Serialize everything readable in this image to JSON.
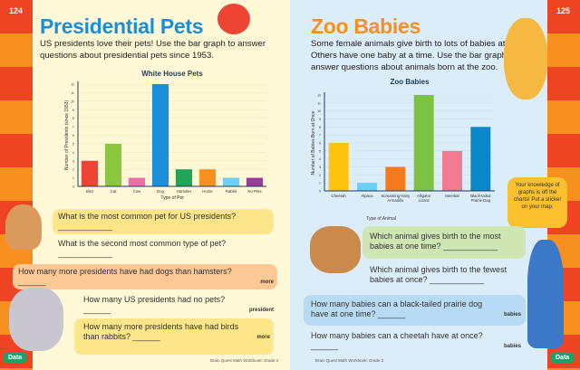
{
  "left_page": {
    "page_number": "124",
    "title": "Presidential Pets",
    "intro": "US presidents love their pets! Use the bar graph to answer questions about presidential pets since 1953.",
    "questions": [
      {
        "text": "What is the most common pet for US presidents? ____________",
        "unit": ""
      },
      {
        "text": "What is the second most common type of pet? ____________",
        "unit": ""
      },
      {
        "text": "How many more presidents have had dogs than hamsters? ______",
        "unit": "more"
      },
      {
        "text": "How many US presidents had no pets? ______",
        "unit": "president"
      },
      {
        "text": "How many more presidents have had birds than rabbits? ______",
        "unit": "more"
      }
    ],
    "tab": "Data",
    "footer": "Brain Quest Math Workbook: Grade 2"
  },
  "right_page": {
    "page_number": "125",
    "title": "Zoo Babies",
    "intro": "Some female animals give birth to lots of babies at once. Others have one baby at a time. Use the bar graph to answer questions about animals born at the zoo.",
    "questions": [
      {
        "text": "Which animal gives birth to the most babies at one time? ____________",
        "unit": ""
      },
      {
        "text": "Which animal gives birth to the fewest babies at once? ____________",
        "unit": ""
      },
      {
        "text": "How many babies can a black-tailed prairie dog have at one time? ______",
        "unit": "babies"
      },
      {
        "text": "How many babies can a cheetah have at once? ______",
        "unit": "babies"
      }
    ],
    "speech_bubble": "Your knowledge of graphs is off the charts! Put a sticker on your map.",
    "tab": "Data",
    "footer": "Brain Quest Math Workbook: Grade 2"
  },
  "chart_data": [
    {
      "type": "bar",
      "title": "White House Pets",
      "xlabel": "Type of Pet",
      "ylabel": "Number of Presidents (since 1953)",
      "categories": [
        "Bird",
        "Cat",
        "Cow",
        "Dog",
        "Hamster",
        "Horse",
        "Rabbit",
        "No Pets"
      ],
      "values": [
        3,
        5,
        1,
        12,
        2,
        2,
        1,
        1
      ],
      "ylim": [
        0,
        12
      ],
      "yticks": [
        0,
        1,
        2,
        3,
        4,
        5,
        6,
        7,
        8,
        9,
        10,
        11,
        12
      ],
      "grid": true,
      "colors": [
        "#ee4433",
        "#8cc63f",
        "#f06faa",
        "#1a8fd8",
        "#22a45a",
        "#f7901e",
        "#6ccff6",
        "#9b3c9c"
      ]
    },
    {
      "type": "bar",
      "title": "Zoo Babies",
      "xlabel": "Type of Animal",
      "ylabel": "Number of Babies Born at Once",
      "categories": [
        "Cheetah",
        "Alpaca",
        "Screaming Hairy Armadillo",
        "Alligator Lizard",
        "Meerkat",
        "Black-tailed Prairie Dog"
      ],
      "values": [
        6,
        1,
        3,
        12,
        5,
        8
      ],
      "ylim": [
        0,
        12
      ],
      "yticks": [
        0,
        1,
        2,
        3,
        4,
        5,
        6,
        7,
        8,
        9,
        10,
        11,
        12
      ],
      "grid": true,
      "colors": [
        "#ffc20e",
        "#6ccff6",
        "#f7791e",
        "#7dc242",
        "#f27a93",
        "#0a87c8"
      ]
    }
  ]
}
